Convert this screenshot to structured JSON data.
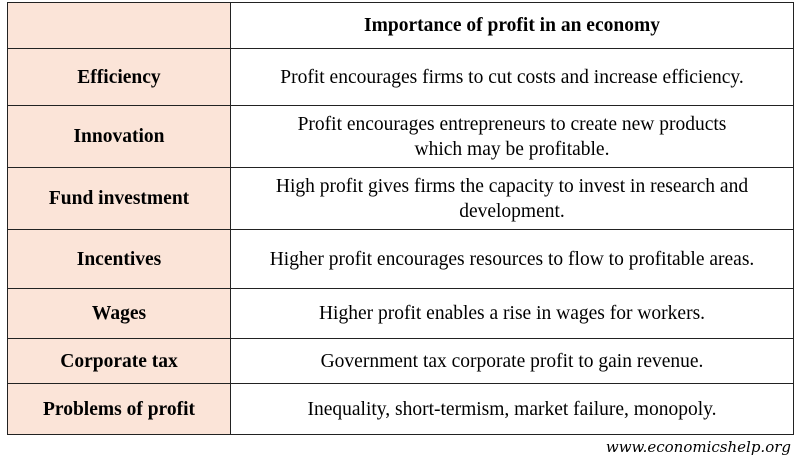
{
  "table": {
    "header": {
      "corner": "",
      "title": "Importance of profit in an economy"
    },
    "rows": [
      {
        "label": "Efficiency",
        "description": "Profit encourages firms to cut costs and increase efficiency."
      },
      {
        "label": "Innovation",
        "description_line1": "Profit encourages entrepreneurs to create new products",
        "description_line2": "which may be profitable."
      },
      {
        "label": "Fund investment",
        "description_line1": "High profit gives firms the capacity to invest in research and",
        "description_line2": "development."
      },
      {
        "label": "Incentives",
        "description": "Higher profit encourages resources to flow to profitable areas."
      },
      {
        "label": "Wages",
        "description": "Higher profit enables a rise in wages for workers."
      },
      {
        "label": "Corporate tax",
        "description": "Government tax corporate profit to gain revenue."
      },
      {
        "label": "Problems of profit",
        "description": "Inequality, short-termism, market failure, monopoly."
      }
    ],
    "colors": {
      "label_background": "#fbe4d8",
      "border": "#222222"
    }
  },
  "footer": {
    "source": "www.economicshelp.org"
  }
}
